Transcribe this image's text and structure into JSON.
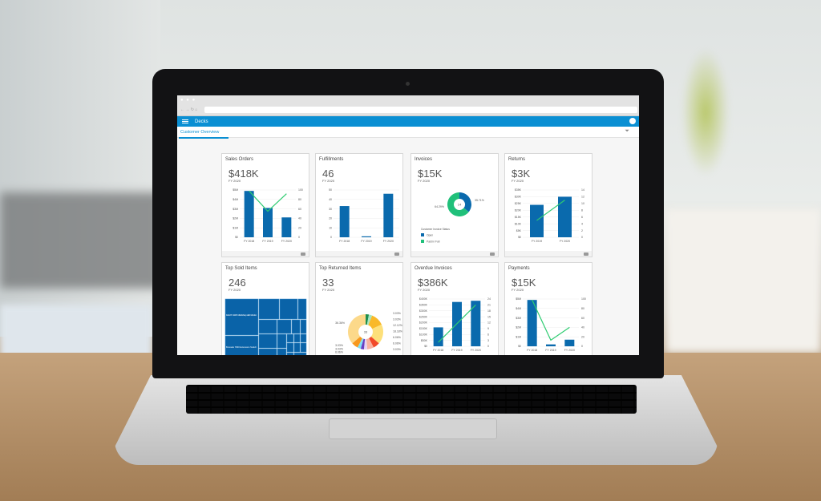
{
  "browser": {
    "window_dots": "● ● ●",
    "nav_icons": "← → ↻ ⌂"
  },
  "app": {
    "title": "Decks",
    "tab": "Customer Overview",
    "filter_icon": "filter-icon",
    "menu_icon": "hamburger-icon",
    "avatar_icon": "user-avatar-icon"
  },
  "colors": {
    "accent": "#0a8fd3",
    "bar": "#0a6aad",
    "line": "#2ecc71",
    "paid": "#20c07a",
    "open": "#0a6aad"
  },
  "cards": [
    {
      "title": "Sales Orders",
      "value": "$418K",
      "period": "FY 2020",
      "chart": {
        "type": "bar-line",
        "categories": [
          "FY 2018",
          "FY 2019",
          "FY 2020"
        ],
        "bars": [
          4.9,
          3.1,
          2.1
        ],
        "line": [
          98,
          55,
          92
        ],
        "ylim": [
          0,
          5
        ],
        "yticks": [
          "$0",
          "$1M",
          "$2M",
          "$3M",
          "$4M",
          "$5M"
        ],
        "y2lim": [
          0,
          100
        ],
        "y2ticks": [
          "0",
          "20",
          "40",
          "60",
          "80",
          "100"
        ]
      }
    },
    {
      "title": "Fulfillments",
      "value": "46",
      "period": "FY 2020",
      "chart": {
        "type": "bar",
        "categories": [
          "FY 2018",
          "FY 2019",
          "FY 2020"
        ],
        "bars": [
          33,
          1,
          46
        ],
        "ylim": [
          0,
          50
        ],
        "yticks": [
          "0",
          "10",
          "20",
          "30",
          "40",
          "50"
        ]
      }
    },
    {
      "title": "Invoices",
      "value": "$15K",
      "period": "FY 2020",
      "chart": {
        "type": "donut",
        "center": "14",
        "slices": [
          {
            "label": "Open",
            "value": 35.71,
            "text": "35.71%"
          },
          {
            "label": "Paid in Full",
            "value": 64.29,
            "text": "64.29%"
          }
        ],
        "legend_title": "Customer Invoice Status"
      }
    },
    {
      "title": "Returns",
      "value": "$3K",
      "period": "FY 2020",
      "chart": {
        "type": "bar-line",
        "categories": [
          "FY 2019",
          "FY 2020"
        ],
        "bars": [
          24,
          30
        ],
        "line": [
          5,
          11
        ],
        "ylim": [
          0,
          35
        ],
        "yticks": [
          "$0",
          "$5K",
          "$10K",
          "$15K",
          "$20K",
          "$25K",
          "$30K",
          "$35K"
        ],
        "y2lim": [
          0,
          14
        ],
        "y2ticks": [
          "0",
          "2",
          "4",
          "6",
          "8",
          "10",
          "12",
          "14"
        ]
      }
    },
    {
      "title": "Top Sold Items",
      "value": "246",
      "period": "FY 2020",
      "chart": {
        "type": "treemap",
        "labels": [
          "Dell 24\" U2415 UltraSharp LED Monitor",
          "Brocade 7800 Extension Switch"
        ]
      }
    },
    {
      "title": "Top Returned Items",
      "value": "33",
      "period": "FY 2020",
      "chart": {
        "type": "donut",
        "center": "33",
        "slices": [
          {
            "value": 3.03,
            "text": "3.03%",
            "color": "#1e8e4e"
          },
          {
            "value": 3.03,
            "text": "3.03%",
            "color": "#a8e6c0"
          },
          {
            "value": 12.12,
            "text": "12.12%",
            "color": "#f9b928"
          },
          {
            "value": 18.18,
            "text": "18.18%",
            "color": "#fde07a"
          },
          {
            "value": 6.06,
            "text": "6.06%",
            "color": "#f24a2a"
          },
          {
            "value": 6.06,
            "text": "6.06%",
            "color": "#f8b2a0"
          },
          {
            "value": 3.03,
            "text": "3.03%",
            "color": "#e6d3f3"
          },
          {
            "value": 3.03,
            "text": "3.03%",
            "color": "#6a3fc1"
          },
          {
            "value": 3.03,
            "text": "3.03%",
            "color": "#7fe0f5"
          },
          {
            "value": 6.06,
            "text": "6.06%",
            "color": "#f7981d"
          },
          {
            "value": 36.36,
            "text": "36.36%",
            "color": "#fcd98a"
          }
        ]
      }
    },
    {
      "title": "Overdue Invoices",
      "value": "$386K",
      "period": "FY 2020",
      "chart": {
        "type": "bar-line",
        "categories": [
          "FY 2018",
          "FY 2019",
          "FY 2020"
        ],
        "bars": [
          160,
          375,
          385
        ],
        "line": [
          2,
          11.5,
          21
        ],
        "ylim": [
          0,
          400
        ],
        "yticks": [
          "$0",
          "$50K",
          "$100K",
          "$150K",
          "$200K",
          "$250K",
          "$300K",
          "$350K",
          "$400K"
        ],
        "y2lim": [
          0,
          24
        ],
        "y2ticks": [
          "0",
          "3",
          "6",
          "9",
          "12",
          "15",
          "18",
          "21",
          "24"
        ]
      }
    },
    {
      "title": "Payments",
      "value": "$15K",
      "period": "FY 2020",
      "chart": {
        "type": "bar-line",
        "categories": [
          "FY 2018",
          "FY 2019",
          "FY 2020"
        ],
        "bars": [
          4.9,
          0.2,
          0.7
        ],
        "line": [
          98,
          13,
          40
        ],
        "ylim": [
          0,
          5
        ],
        "yticks": [
          "$0",
          "$1M",
          "$2M",
          "$3M",
          "$4M",
          "$5M"
        ],
        "y2lim": [
          0,
          100
        ],
        "y2ticks": [
          "0",
          "20",
          "40",
          "60",
          "80",
          "100"
        ]
      }
    }
  ]
}
